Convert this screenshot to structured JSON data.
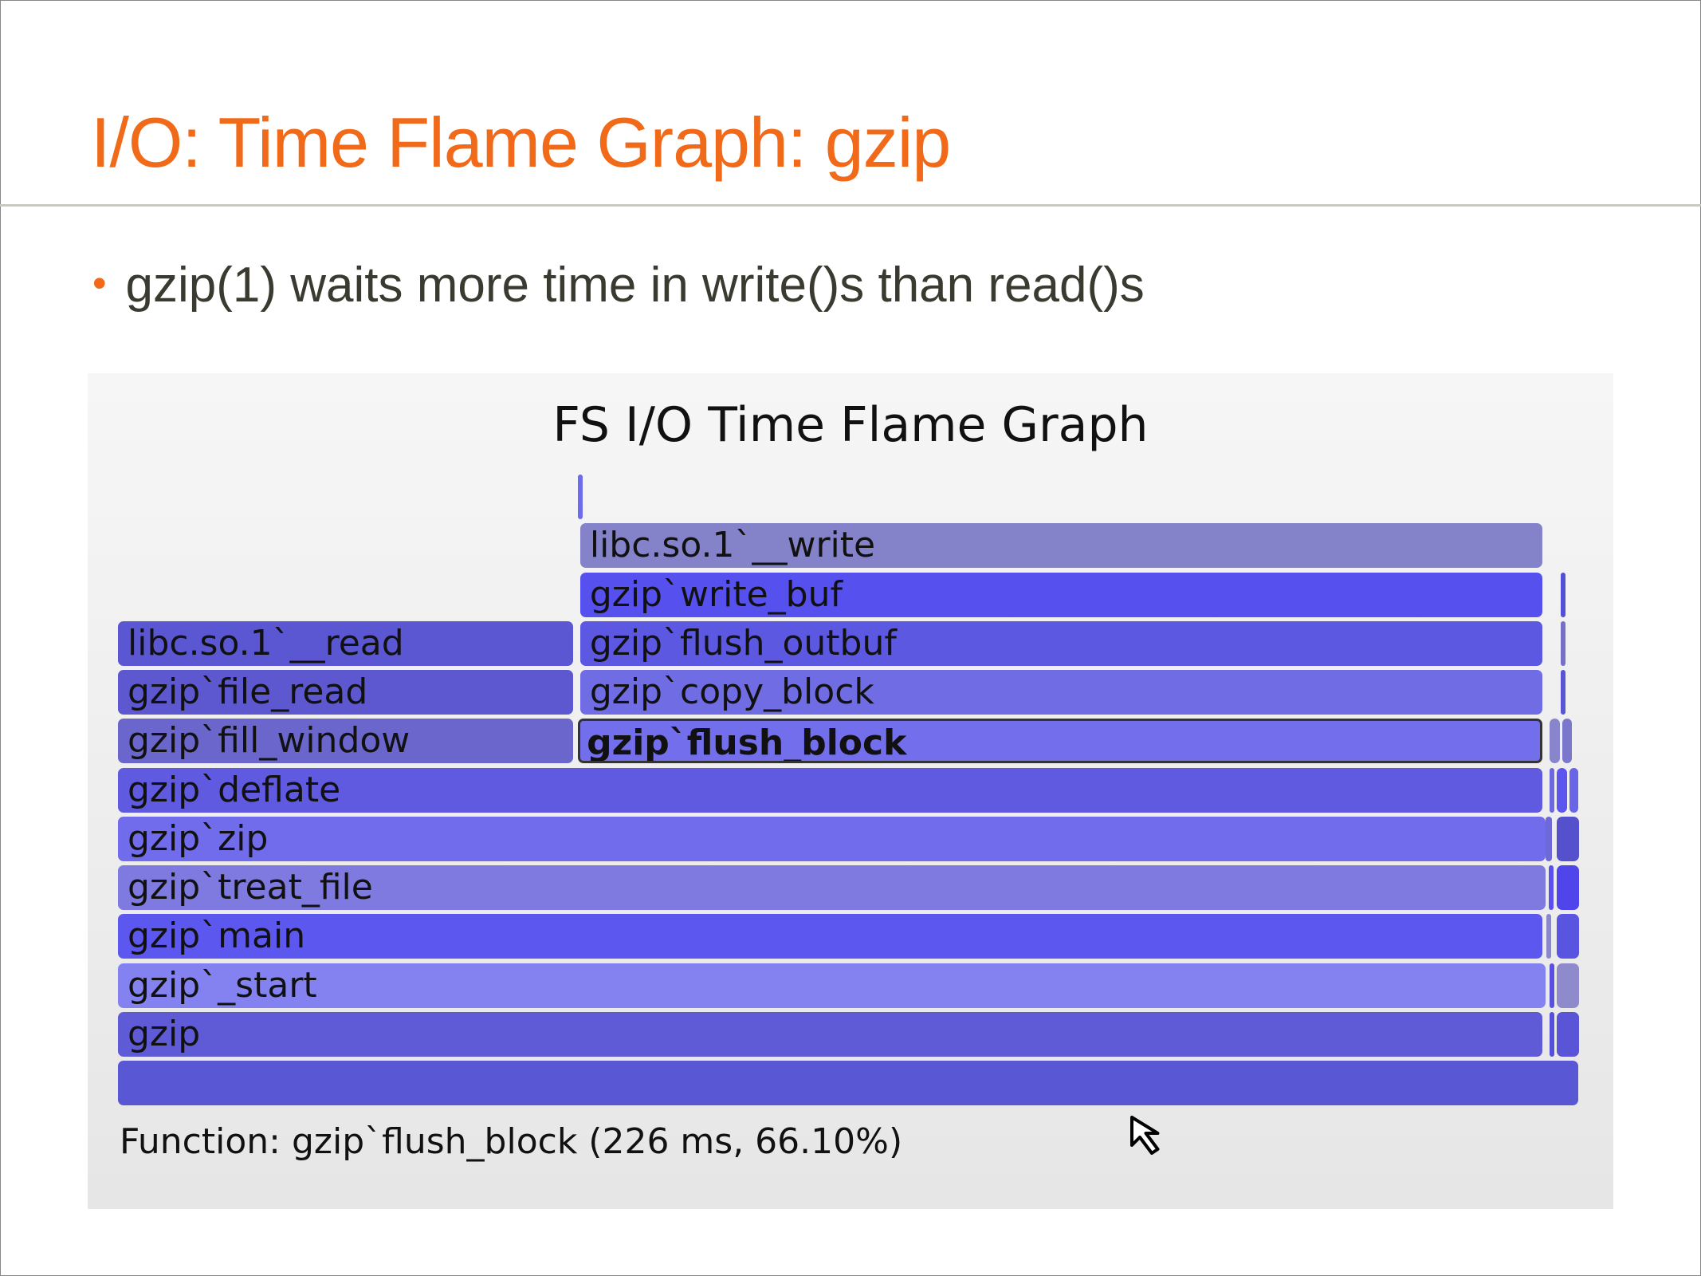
{
  "slide": {
    "title": "I/O: Time Flame Graph: gzip",
    "bullet": "gzip(1) waits more time in write()s than read()s"
  },
  "flame_graph": {
    "title": "FS I/O Time Flame Graph",
    "status": "Function: gzip`flush_block (226 ms, 66.10%)",
    "selected": "gzip`flush_block",
    "frames": [
      {
        "depth": 0,
        "start": 0,
        "frac": 1.0,
        "label": "",
        "color": "#5a57d4"
      },
      {
        "depth": 1,
        "start": 0,
        "frac": 0.9755,
        "label": "gzip",
        "color": "#5f5bd6"
      },
      {
        "depth": 1,
        "start": 0.9785,
        "frac": 0.003,
        "label": "",
        "color": "#5550dc"
      },
      {
        "depth": 1,
        "start": 0.9837,
        "frac": 0.0171,
        "label": "",
        "color": "#5a55d6"
      },
      {
        "depth": 2,
        "start": 0,
        "frac": 0.9777,
        "label": "gzip`_start",
        "color": "#8482f0"
      },
      {
        "depth": 2,
        "start": 0.9785,
        "frac": 0.004,
        "label": "",
        "color": "#5a50e0"
      },
      {
        "depth": 2,
        "start": 0.9837,
        "frac": 0.0171,
        "label": "",
        "color": "#8f8acc"
      },
      {
        "depth": 3,
        "start": 0,
        "frac": 0.9755,
        "label": "gzip`main",
        "color": "#5c57ef"
      },
      {
        "depth": 3,
        "start": 0.9763,
        "frac": 0.005,
        "label": "",
        "color": "#8a87cc"
      },
      {
        "depth": 3,
        "start": 0.9837,
        "frac": 0.0171,
        "label": "",
        "color": "#5a55e0"
      },
      {
        "depth": 4,
        "start": 0,
        "frac": 0.9777,
        "label": "gzip`treat_file",
        "color": "#7e7adf"
      },
      {
        "depth": 4,
        "start": 0.978,
        "frac": 0.005,
        "label": "",
        "color": "#5a50ef"
      },
      {
        "depth": 4,
        "start": 0.9837,
        "frac": 0.0171,
        "label": "",
        "color": "#4f45ea"
      },
      {
        "depth": 5,
        "start": 0,
        "frac": 0.9777,
        "label": "gzip`zip",
        "color": "#716ceb"
      },
      {
        "depth": 5,
        "start": 0.976,
        "frac": 0.006,
        "label": "",
        "color": "#6e69d6"
      },
      {
        "depth": 5,
        "start": 0.9837,
        "frac": 0.0171,
        "label": "",
        "color": "#5550cc"
      },
      {
        "depth": 6,
        "start": 0,
        "frac": 0.9755,
        "label": "gzip`deflate",
        "color": "#5f5adf"
      },
      {
        "depth": 6,
        "start": 0.9785,
        "frac": 0.0045,
        "label": "",
        "color": "#6e68e0"
      },
      {
        "depth": 6,
        "start": 0.9837,
        "frac": 0.0088,
        "label": "",
        "color": "#5c55ee"
      },
      {
        "depth": 6,
        "start": 0.9925,
        "frac": 0.0075,
        "label": "",
        "color": "#6a65e6"
      },
      {
        "depth": 7,
        "start": 0,
        "frac": 0.313,
        "label": "gzip`fill_window",
        "color": "#6a66cc"
      },
      {
        "depth": 7,
        "start": 0.3145,
        "frac": 0.661,
        "label": "gzip`flush_block",
        "color": "#736eeb",
        "selected": true
      },
      {
        "depth": 7,
        "start": 0.9785,
        "frac": 0.0088,
        "label": "",
        "color": "#8885cc"
      },
      {
        "depth": 7,
        "start": 0.9874,
        "frac": 0.0083,
        "label": "",
        "color": "#7a77cc"
      },
      {
        "depth": 8,
        "start": 0,
        "frac": 0.313,
        "label": "gzip`file_read",
        "color": "#5d58cf"
      },
      {
        "depth": 8,
        "start": 0.316,
        "frac": 0.6595,
        "label": "gzip`copy_block",
        "color": "#706ce3"
      },
      {
        "depth": 8,
        "start": 0.9866,
        "frac": 0.0045,
        "label": "",
        "color": "#5a55d4"
      },
      {
        "depth": 9,
        "start": 0,
        "frac": 0.313,
        "label": "libc.so.1`__read",
        "color": "#5b57d2"
      },
      {
        "depth": 9,
        "start": 0.316,
        "frac": 0.6595,
        "label": "gzip`flush_outbuf",
        "color": "#5c58e2"
      },
      {
        "depth": 9,
        "start": 0.9866,
        "frac": 0.0045,
        "label": "",
        "color": "#7571c8"
      },
      {
        "depth": 10,
        "start": 0.316,
        "frac": 0.6595,
        "label": "gzip`write_buf",
        "color": "#5550ee"
      },
      {
        "depth": 10,
        "start": 0.9866,
        "frac": 0.0045,
        "label": "",
        "color": "#5350d8"
      },
      {
        "depth": 11,
        "start": 0.316,
        "frac": 0.6595,
        "label": "libc.so.1`__write",
        "color": "#8482c8"
      },
      {
        "depth": 12,
        "start": 0.3145,
        "frac": 0.005,
        "label": "",
        "color": "#6e6bef"
      }
    ]
  }
}
